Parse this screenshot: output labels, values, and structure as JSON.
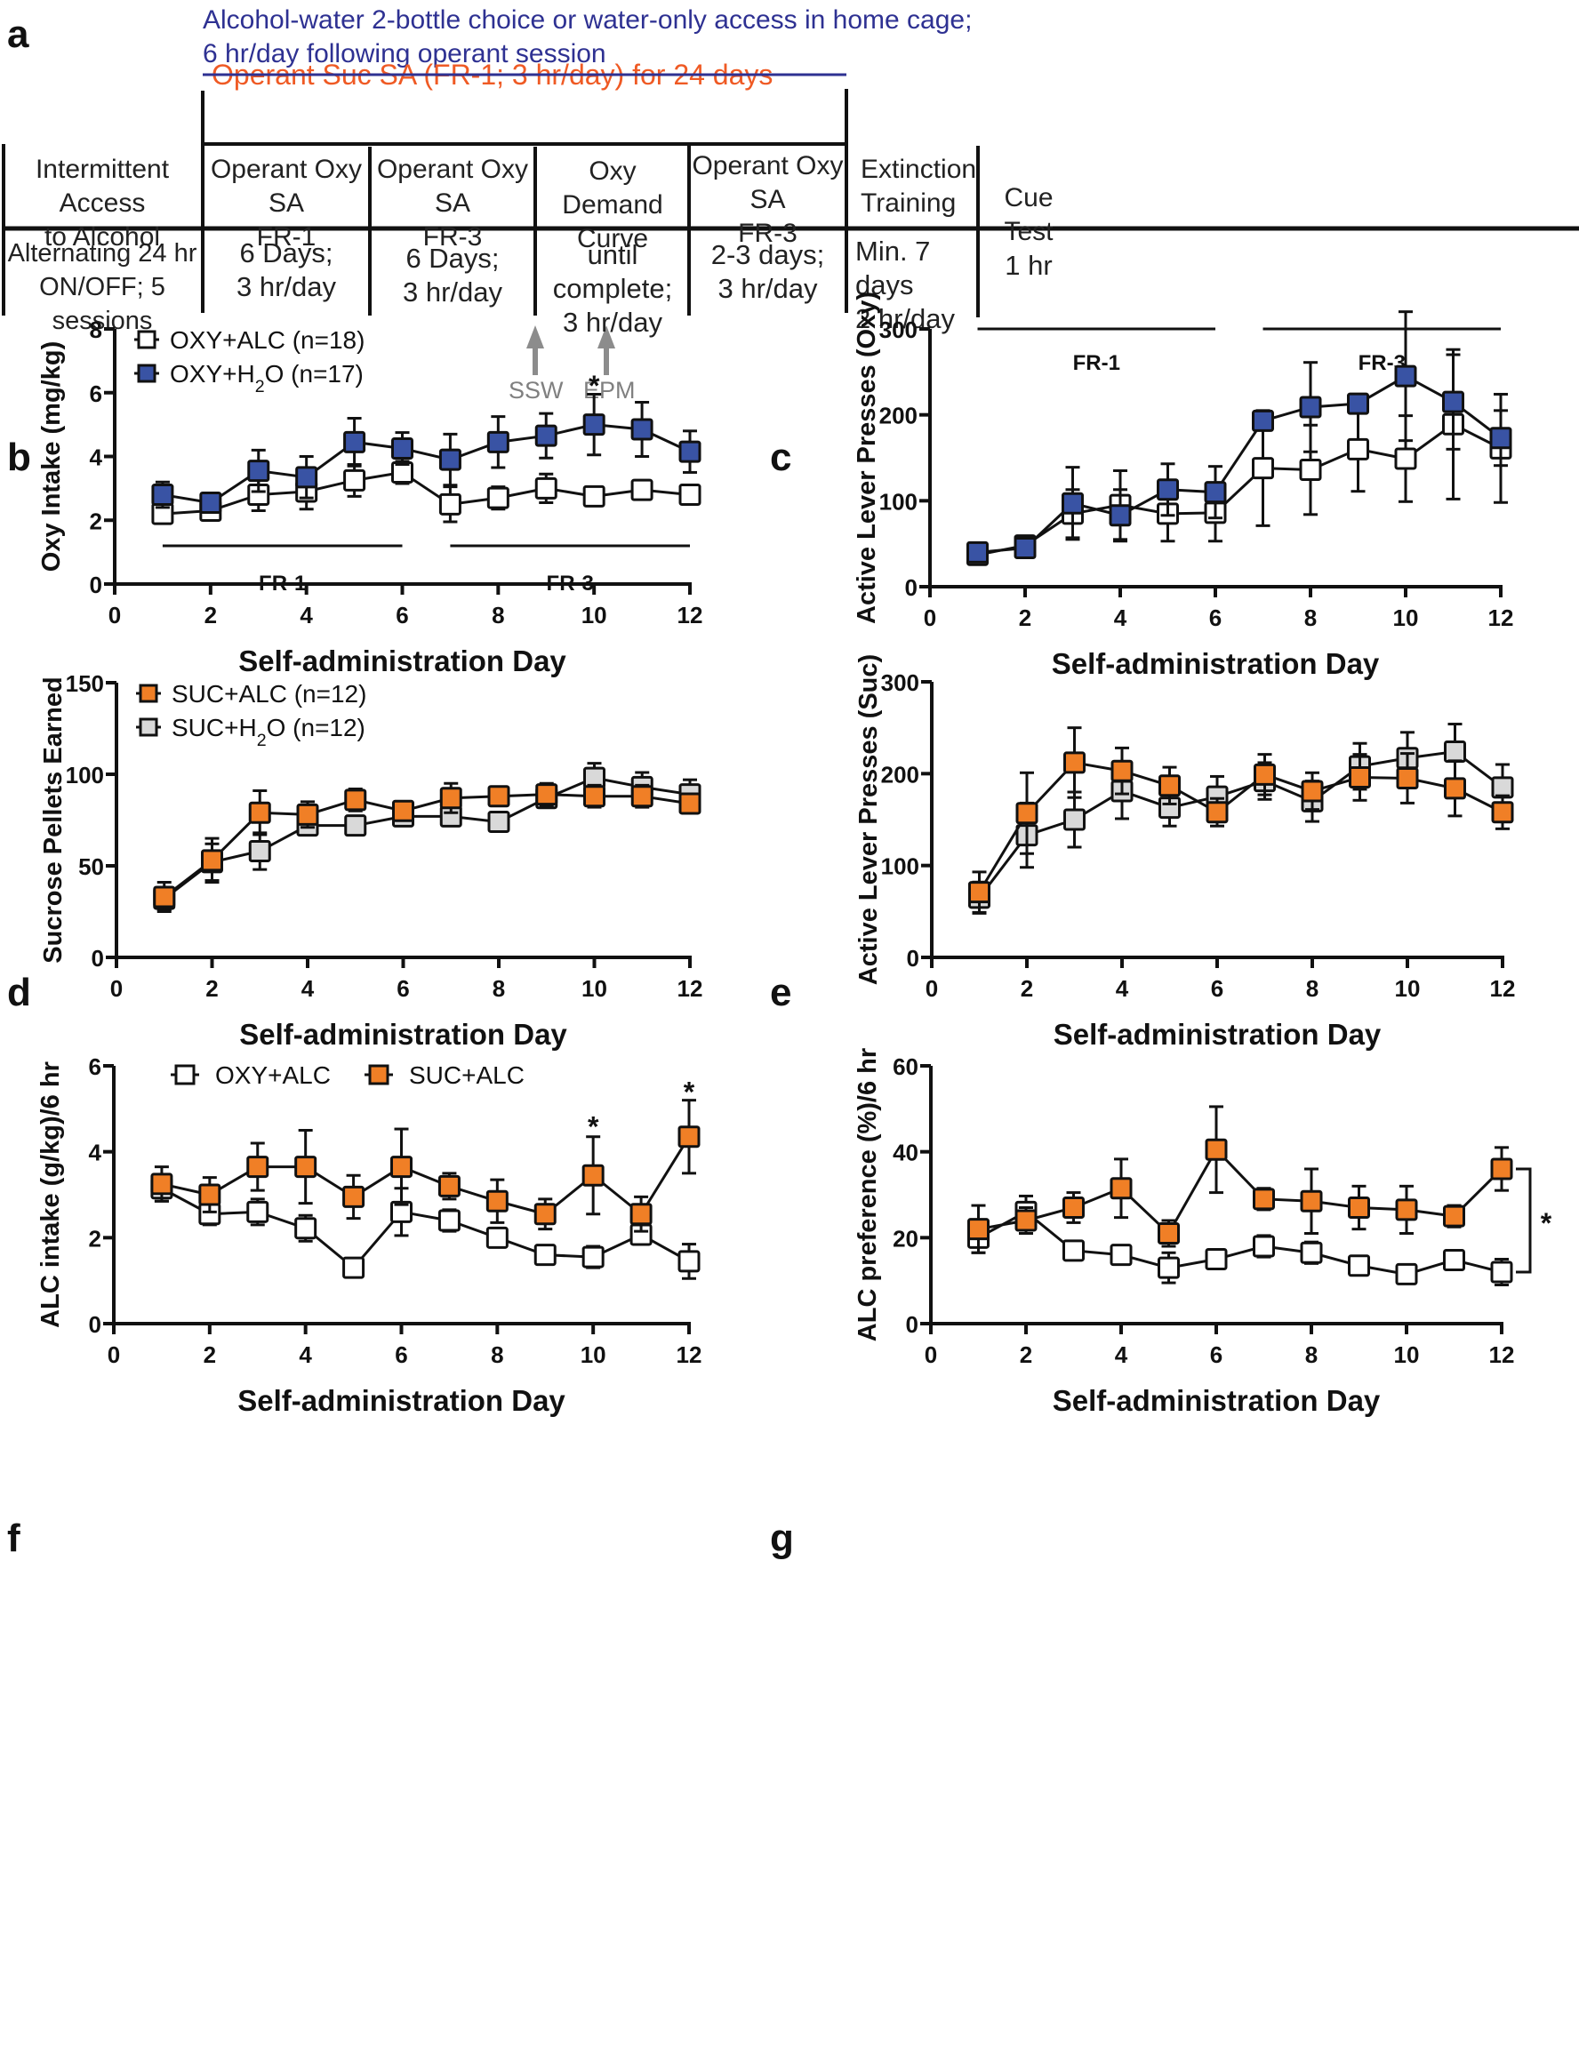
{
  "panel_letters": {
    "a": "a",
    "b": "b",
    "c": "c",
    "d": "d",
    "e": "e",
    "f": "f",
    "g": "g"
  },
  "timeline": {
    "home_cage_label": "Alcohol-water 2-bottle choice or water-only access in home cage;\n6 hr/day following operant session",
    "suc_label": "Operant Suc SA (FR-1; 3 hr/day) for 24 days",
    "stages": [
      {
        "title": "Intermittent Access\nto Alcohol",
        "detail": "Alternating 24 hr\nON/OFF; 5 sessions"
      },
      {
        "title": "Operant Oxy SA\nFR-1",
        "detail": "6 Days;\n3 hr/day"
      },
      {
        "title": "Operant Oxy SA\nFR-3",
        "detail": "6 Days;\n3 hr/day"
      },
      {
        "title": "Oxy Demand\nCurve",
        "detail": "until complete;\n3 hr/day"
      },
      {
        "title": "Operant Oxy SA\nFR-3",
        "detail": "2-3 days;\n3 hr/day"
      },
      {
        "title": "Extinction\nTraining",
        "detail": "Min. 7 days\n2 hr/day"
      },
      {
        "title": "Cue Test",
        "detail": "1 hr"
      }
    ],
    "markers": [
      "SSW",
      "EPM"
    ],
    "colors": {
      "blue": "#2e3192",
      "orange": "#ef5a24",
      "gray": "#8c8c8c"
    }
  },
  "chart_data": [
    {
      "id": "b",
      "type": "line",
      "ylabel": "Oxy Intake (mg/kg)",
      "xlabel": "Self-administration Day",
      "xlim": [
        0,
        12
      ],
      "ylim": [
        0,
        8
      ],
      "xticks": [
        0,
        2,
        4,
        6,
        8,
        10,
        12
      ],
      "yticks": [
        0,
        2,
        4,
        6,
        8
      ],
      "legend": "top-left",
      "x": [
        1,
        2,
        3,
        4,
        5,
        6,
        7,
        8,
        9,
        10,
        11,
        12
      ],
      "series": [
        {
          "name": "OXY+ALC (n=18)",
          "fill": "#ffffff",
          "values": [
            2.2,
            2.3,
            2.8,
            2.9,
            3.25,
            3.5,
            2.5,
            2.7,
            3.0,
            2.75,
            2.95,
            2.8
          ],
          "err": [
            0.25,
            0.3,
            0.5,
            0.55,
            0.5,
            0.35,
            0.55,
            0.35,
            0.45,
            0.3,
            0.3,
            0.3
          ]
        },
        {
          "name": "OXY+H2O (n=17)",
          "fill": "#3953a4",
          "values": [
            2.8,
            2.55,
            3.55,
            3.35,
            4.45,
            4.25,
            3.9,
            4.45,
            4.65,
            5.0,
            4.85,
            4.15
          ],
          "err": [
            0.4,
            0.3,
            0.65,
            0.65,
            0.75,
            0.5,
            0.8,
            0.8,
            0.7,
            0.95,
            0.85,
            0.65
          ]
        }
      ],
      "phases": [
        {
          "label": "FR-1",
          "from": 1,
          "to": 6,
          "y": 1.2
        },
        {
          "label": "FR-3",
          "from": 7,
          "to": 12,
          "y": 1.2
        }
      ],
      "annotations": [
        {
          "text": "*",
          "x": 10,
          "y": 6.3
        }
      ]
    },
    {
      "id": "c",
      "type": "line",
      "ylabel": "Active Lever Presses (Oxy)",
      "xlabel": "Self-administration Day",
      "xlim": [
        0,
        12
      ],
      "ylim": [
        0,
        300
      ],
      "xticks": [
        0,
        2,
        4,
        6,
        8,
        10,
        12
      ],
      "yticks": [
        0,
        100,
        200,
        300
      ],
      "x": [
        1,
        2,
        3,
        4,
        5,
        6,
        7,
        8,
        9,
        10,
        11,
        12
      ],
      "series": [
        {
          "name": "OXY+ALC (n=18)",
          "fill": "#ffffff",
          "values": [
            37,
            48,
            85,
            95,
            85,
            86,
            138,
            136,
            160,
            149,
            189,
            161
          ],
          "err": [
            8,
            6,
            28,
            40,
            32,
            33,
            67,
            52,
            49,
            50,
            87,
            63
          ]
        },
        {
          "name": "OXY+H2O (n=17)",
          "fill": "#3953a4",
          "values": [
            40,
            45,
            97,
            83,
            113,
            110,
            193,
            209,
            213,
            245,
            215,
            173
          ],
          "err": [
            5,
            5,
            42,
            30,
            30,
            30,
            5,
            52,
            5,
            75,
            55,
            32
          ]
        }
      ],
      "phases": [
        {
          "label": "FR-1",
          "from": 1,
          "to": 6,
          "y": 300
        },
        {
          "label": "FR-3",
          "from": 7,
          "to": 12,
          "y": 300
        }
      ]
    },
    {
      "id": "d",
      "type": "line",
      "ylabel": "Sucrose Pellets Earned",
      "xlabel": "Self-administration Day",
      "xlim": [
        0,
        12
      ],
      "ylim": [
        0,
        150
      ],
      "xticks": [
        0,
        2,
        4,
        6,
        8,
        10,
        12
      ],
      "yticks": [
        0,
        50,
        100,
        150
      ],
      "legend": "top-left",
      "x": [
        1,
        2,
        3,
        4,
        5,
        6,
        7,
        8,
        9,
        10,
        11,
        12
      ],
      "series": [
        {
          "name": "SUC+H2O (n=12)",
          "fill": "#d9d9d9",
          "values": [
            32,
            52,
            58,
            72,
            72,
            77,
            77,
            74,
            87,
            98,
            93,
            89
          ],
          "err": [
            6,
            10,
            10,
            4,
            4,
            4,
            4,
            4,
            4,
            8,
            8,
            8
          ]
        },
        {
          "name": "SUC+ALC (n=12)",
          "fill": "#f07f26",
          "values": [
            33,
            53,
            79,
            78,
            86,
            80,
            87,
            88,
            89,
            88,
            88,
            84
          ],
          "err": [
            8,
            12,
            12,
            7,
            6,
            5,
            8,
            5,
            6,
            6,
            6,
            5
          ]
        }
      ]
    },
    {
      "id": "e",
      "type": "line",
      "ylabel": "Active Lever Presses  (Suc)",
      "xlabel": "Self-administration Day",
      "xlim": [
        0,
        12
      ],
      "ylim": [
        0,
        300
      ],
      "xticks": [
        0,
        2,
        4,
        6,
        8,
        10,
        12
      ],
      "yticks": [
        0,
        100,
        200,
        300
      ],
      "x": [
        1,
        2,
        3,
        4,
        5,
        6,
        7,
        8,
        9,
        10,
        11,
        12
      ],
      "series": [
        {
          "name": "SUC+H2O (n=12)",
          "fill": "#d9d9d9",
          "values": [
            65,
            133,
            150,
            181,
            163,
            175,
            192,
            170,
            208,
            217,
            224,
            185
          ],
          "err": [
            17,
            35,
            30,
            30,
            20,
            22,
            20,
            22,
            25,
            28,
            30,
            25
          ]
        },
        {
          "name": "SUC+ALC (n=12)",
          "fill": "#f07f26",
          "values": [
            71,
            157,
            212,
            203,
            187,
            158,
            199,
            181,
            196,
            195,
            184,
            158
          ],
          "err": [
            22,
            44,
            38,
            25,
            20,
            15,
            22,
            20,
            25,
            27,
            30,
            18
          ]
        }
      ]
    },
    {
      "id": "f",
      "type": "line",
      "ylabel": "ALC intake (g/kg)/6 hr",
      "xlabel": "Self-administration Day",
      "xlim": [
        0,
        12
      ],
      "ylim": [
        0,
        6
      ],
      "xticks": [
        0,
        2,
        4,
        6,
        8,
        10,
        12
      ],
      "yticks": [
        0,
        2,
        4,
        6
      ],
      "legend": "top",
      "x": [
        1,
        2,
        3,
        4,
        5,
        6,
        7,
        8,
        9,
        10,
        11,
        12
      ],
      "series": [
        {
          "name": "OXY+ALC",
          "fill": "#ffffff",
          "values": [
            3.15,
            2.55,
            2.6,
            2.22,
            1.3,
            2.6,
            2.4,
            2.0,
            1.6,
            1.55,
            2.07,
            1.45
          ],
          "err": [
            0.3,
            0.25,
            0.3,
            0.3,
            0.2,
            0.55,
            0.25,
            0.2,
            0.15,
            0.25,
            0.2,
            0.4
          ]
        },
        {
          "name": "SUC+ALC",
          "fill": "#f07f26",
          "values": [
            3.25,
            3.0,
            3.65,
            3.65,
            2.95,
            3.65,
            3.2,
            2.85,
            2.55,
            3.45,
            2.55,
            4.35
          ],
          "err": [
            0.4,
            0.4,
            0.55,
            0.85,
            0.5,
            0.88,
            0.3,
            0.5,
            0.35,
            0.9,
            0.4,
            0.85
          ]
        }
      ],
      "annotations": [
        {
          "text": "*",
          "x": 10,
          "y": 4.65
        },
        {
          "text": "*",
          "x": 12,
          "y": 5.45
        }
      ]
    },
    {
      "id": "g",
      "type": "line",
      "ylabel": "ALC preference (%)/6 hr",
      "xlabel": "Self-administration Day",
      "xlim": [
        0,
        12
      ],
      "ylim": [
        0,
        60
      ],
      "xticks": [
        0,
        2,
        4,
        6,
        8,
        10,
        12
      ],
      "yticks": [
        0,
        20,
        40,
        60
      ],
      "x": [
        1,
        2,
        3,
        4,
        5,
        6,
        7,
        8,
        9,
        10,
        11,
        12
      ],
      "series": [
        {
          "name": "OXY+ALC",
          "fill": "#ffffff",
          "values": [
            20,
            26,
            17,
            16,
            13,
            15,
            18,
            16.5,
            13.5,
            11.5,
            14.8,
            12
          ],
          "err": [
            3.5,
            3.7,
            2,
            2,
            3.5,
            2,
            2.5,
            2.5,
            2.2,
            1.5,
            1,
            3
          ]
        },
        {
          "name": "SUC+ALC",
          "fill": "#f07f26",
          "values": [
            22,
            24,
            27,
            31.5,
            21,
            40.5,
            29,
            28.5,
            27,
            26.5,
            25,
            36
          ],
          "err": [
            5.5,
            3,
            3.5,
            6.8,
            3,
            10,
            2.5,
            7.5,
            5,
            5.5,
            2.5,
            5
          ]
        }
      ],
      "bracket": {
        "from": 12,
        "to": 36,
        "label": "*"
      }
    }
  ]
}
